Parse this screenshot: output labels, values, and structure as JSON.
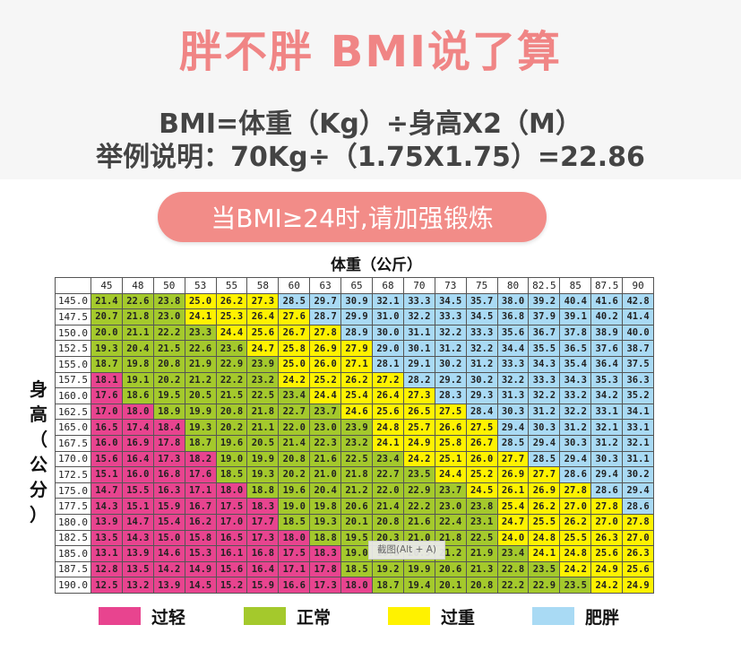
{
  "headline": "胖不胖  BMI说了算",
  "formula_line1": "BMI=体重（Kg）÷身高X2（M）",
  "formula_line2": "举例说明：70Kg÷（1.75X1.75）=22.86",
  "advice": "当BMI≥24时,请加强锻炼",
  "weight_axis_title": "体重（公斤）",
  "height_axis_title": [
    "身",
    "高",
    "（",
    "公",
    "分",
    "）"
  ],
  "watermark": "截图(Alt + A)",
  "colors": {
    "overweight_accent": "#f28c88",
    "thin": "#e8448f",
    "normal": "#a4c92c",
    "heavy": "#fff200",
    "obese": "#a9daf4"
  },
  "table": {
    "weights": [
      "45",
      "48",
      "50",
      "53",
      "55",
      "58",
      "60",
      "63",
      "65",
      "68",
      "70",
      "73",
      "75",
      "80",
      "82.5",
      "85",
      "87.5",
      "90"
    ],
    "heights": [
      "145.0",
      "147.5",
      "150.0",
      "152.5",
      "155.0",
      "157.5",
      "160.0",
      "162.5",
      "165.0",
      "167.5",
      "170.0",
      "172.5",
      "175.0",
      "177.5",
      "180.0",
      "182.5",
      "185.0",
      "187.5",
      "190.0"
    ],
    "rows": [
      [
        "21.4",
        "22.6",
        "23.8",
        "25.0",
        "26.2",
        "27.3",
        "28.5",
        "29.7",
        "30.9",
        "32.1",
        "33.3",
        "34.5",
        "35.7",
        "38.0",
        "39.2",
        "40.4",
        "41.6",
        "42.8"
      ],
      [
        "20.7",
        "21.8",
        "23.0",
        "24.1",
        "25.3",
        "26.4",
        "27.6",
        "28.7",
        "29.9",
        "31.0",
        "32.2",
        "33.3",
        "34.5",
        "36.8",
        "37.9",
        "39.1",
        "40.2",
        "41.4"
      ],
      [
        "20.0",
        "21.1",
        "22.2",
        "23.3",
        "24.4",
        "25.6",
        "26.7",
        "27.8",
        "28.9",
        "30.0",
        "31.1",
        "32.2",
        "33.3",
        "35.6",
        "36.7",
        "37.8",
        "38.9",
        "40.0"
      ],
      [
        "19.3",
        "20.4",
        "21.5",
        "22.6",
        "23.6",
        "24.7",
        "25.8",
        "26.9",
        "27.9",
        "29.0",
        "30.1",
        "31.2",
        "32.2",
        "34.4",
        "35.5",
        "36.5",
        "37.6",
        "38.7"
      ],
      [
        "18.7",
        "19.8",
        "20.8",
        "21.9",
        "22.9",
        "23.9",
        "25.0",
        "26.0",
        "27.1",
        "28.1",
        "29.1",
        "30.2",
        "31.2",
        "33.3",
        "34.3",
        "35.4",
        "36.4",
        "37.5"
      ],
      [
        "18.1",
        "19.1",
        "20.2",
        "21.2",
        "22.2",
        "23.2",
        "24.2",
        "25.2",
        "26.2",
        "27.2",
        "28.2",
        "29.2",
        "30.2",
        "32.2",
        "33.3",
        "34.3",
        "35.3",
        "36.3"
      ],
      [
        "17.6",
        "18.6",
        "19.5",
        "20.5",
        "21.5",
        "22.5",
        "23.4",
        "24.4",
        "25.4",
        "26.4",
        "27.3",
        "28.3",
        "29.3",
        "31.3",
        "32.2",
        "33.2",
        "34.2",
        "35.2"
      ],
      [
        "17.0",
        "18.0",
        "18.9",
        "19.9",
        "20.8",
        "21.8",
        "22.7",
        "23.7",
        "24.6",
        "25.6",
        "26.5",
        "27.5",
        "28.4",
        "30.3",
        "31.2",
        "32.2",
        "33.1",
        "34.1"
      ],
      [
        "16.5",
        "17.4",
        "18.4",
        "19.3",
        "20.2",
        "21.1",
        "22.0",
        "23.0",
        "23.9",
        "24.8",
        "25.7",
        "26.6",
        "27.5",
        "29.4",
        "30.3",
        "31.2",
        "32.1",
        "33.1"
      ],
      [
        "16.0",
        "16.9",
        "17.8",
        "18.7",
        "19.6",
        "20.5",
        "21.4",
        "22.3",
        "23.2",
        "24.1",
        "24.9",
        "25.8",
        "26.7",
        "28.5",
        "29.4",
        "30.3",
        "31.2",
        "32.1"
      ],
      [
        "15.6",
        "16.4",
        "17.3",
        "18.2",
        "19.0",
        "19.9",
        "20.8",
        "21.6",
        "22.5",
        "23.4",
        "24.2",
        "25.1",
        "26.0",
        "27.7",
        "28.5",
        "29.4",
        "30.3",
        "31.1"
      ],
      [
        "15.1",
        "16.0",
        "16.8",
        "17.6",
        "18.5",
        "19.3",
        "20.2",
        "21.0",
        "21.8",
        "22.7",
        "23.5",
        "24.4",
        "25.2",
        "26.9",
        "27.7",
        "28.6",
        "29.4",
        "30.2"
      ],
      [
        "14.7",
        "15.5",
        "16.3",
        "17.1",
        "18.0",
        "18.8",
        "19.6",
        "20.4",
        "21.2",
        "22.0",
        "22.9",
        "23.7",
        "24.5",
        "26.1",
        "26.9",
        "27.8",
        "28.6",
        "29.4"
      ],
      [
        "14.3",
        "15.1",
        "15.9",
        "16.7",
        "17.5",
        "18.3",
        "19.0",
        "19.8",
        "20.6",
        "21.4",
        "22.2",
        "23.0",
        "23.8",
        "25.4",
        "26.2",
        "27.0",
        "27.8",
        "28.6"
      ],
      [
        "13.9",
        "14.7",
        "15.4",
        "16.2",
        "17.0",
        "17.7",
        "18.5",
        "19.3",
        "20.1",
        "20.8",
        "21.6",
        "22.4",
        "23.1",
        "24.7",
        "25.5",
        "26.2",
        "27.0",
        "27.8"
      ],
      [
        "13.5",
        "14.3",
        "15.0",
        "15.8",
        "16.5",
        "17.3",
        "18.0",
        "18.8",
        "19.5",
        "20.3",
        "21.0",
        "21.8",
        "22.5",
        "24.0",
        "24.8",
        "25.5",
        "26.3",
        "27.0"
      ],
      [
        "13.1",
        "13.9",
        "14.6",
        "15.3",
        "16.1",
        "16.8",
        "17.5",
        "18.3",
        "19.0",
        "19.8",
        "20.5",
        "21.2",
        "21.9",
        "23.4",
        "24.1",
        "24.8",
        "25.6",
        "26.3"
      ],
      [
        "12.8",
        "13.5",
        "14.2",
        "14.9",
        "15.6",
        "16.4",
        "17.1",
        "17.8",
        "18.5",
        "19.2",
        "19.9",
        "20.6",
        "21.3",
        "22.8",
        "23.5",
        "24.2",
        "24.9",
        "25.6"
      ],
      [
        "12.5",
        "13.2",
        "13.9",
        "14.5",
        "15.2",
        "15.9",
        "16.6",
        "17.3",
        "18.0",
        "18.7",
        "19.4",
        "20.1",
        "20.8",
        "22.2",
        "22.9",
        "23.5",
        "24.2",
        "24.9"
      ]
    ]
  },
  "legend": [
    {
      "label": "过轻",
      "key": "thin"
    },
    {
      "label": "正常",
      "key": "normal"
    },
    {
      "label": "过重",
      "key": "heavy"
    },
    {
      "label": "肥胖",
      "key": "obese"
    }
  ]
}
